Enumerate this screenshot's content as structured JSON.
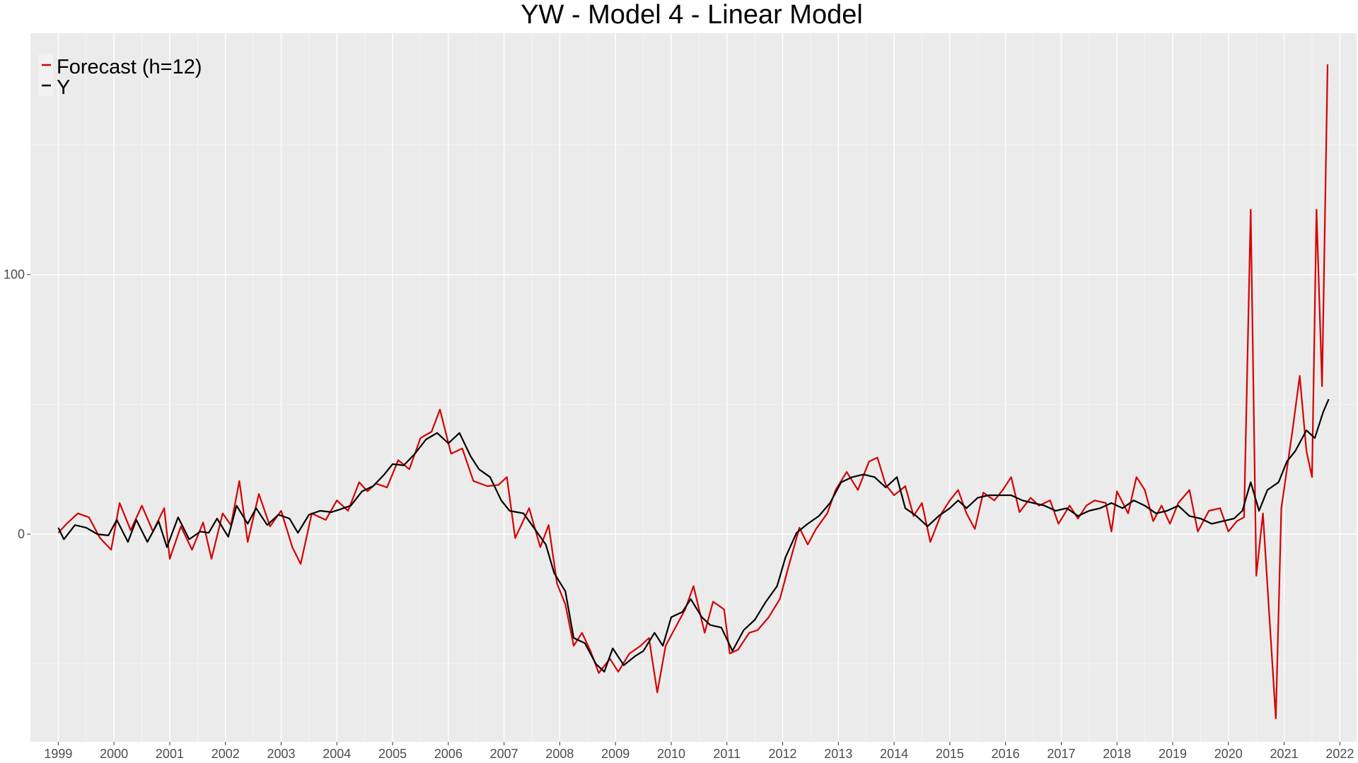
{
  "chart_data": {
    "type": "line",
    "title": "YW - Model 4 - Linear Model",
    "xlabel": "",
    "ylabel": "",
    "xlim": [
      1998.5,
      2022.3
    ],
    "ylim": [
      -80,
      193
    ],
    "x_ticks": [
      "1999",
      "2000",
      "2001",
      "2002",
      "2003",
      "2004",
      "2005",
      "2006",
      "2007",
      "2008",
      "2009",
      "2010",
      "2011",
      "2012",
      "2013",
      "2014",
      "2015",
      "2016",
      "2017",
      "2018",
      "2019",
      "2020",
      "2021",
      "2022"
    ],
    "y_ticks": [
      "0",
      "100"
    ],
    "grid": true,
    "legend_position": "top-left",
    "series": [
      {
        "name": "Forecast (h=12)",
        "color": "#d50000",
        "points": [
          [
            1999.0,
            0.5
          ],
          [
            1999.15,
            4.0
          ],
          [
            1999.35,
            8.0
          ],
          [
            1999.55,
            6.5
          ],
          [
            1999.75,
            -1.5
          ],
          [
            1999.95,
            -6.0
          ],
          [
            2000.1,
            12.0
          ],
          [
            2000.3,
            1.5
          ],
          [
            2000.5,
            11.0
          ],
          [
            2000.7,
            1.0
          ],
          [
            2000.9,
            10.0
          ],
          [
            2001.0,
            -9.5
          ],
          [
            2001.2,
            3.0
          ],
          [
            2001.4,
            -6.0
          ],
          [
            2001.6,
            4.5
          ],
          [
            2001.75,
            -9.5
          ],
          [
            2001.95,
            8.0
          ],
          [
            2002.1,
            3.5
          ],
          [
            2002.25,
            20.5
          ],
          [
            2002.4,
            -3.0
          ],
          [
            2002.6,
            15.5
          ],
          [
            2002.8,
            3.0
          ],
          [
            2003.0,
            9.0
          ],
          [
            2003.2,
            -5.0
          ],
          [
            2003.35,
            -11.5
          ],
          [
            2003.55,
            8.0
          ],
          [
            2003.8,
            5.5
          ],
          [
            2004.0,
            13.0
          ],
          [
            2004.2,
            9.0
          ],
          [
            2004.4,
            20.0
          ],
          [
            2004.55,
            16.5
          ],
          [
            2004.7,
            19.5
          ],
          [
            2004.9,
            18.0
          ],
          [
            2005.1,
            28.5
          ],
          [
            2005.3,
            25.0
          ],
          [
            2005.5,
            37.0
          ],
          [
            2005.7,
            39.5
          ],
          [
            2005.85,
            48.0
          ],
          [
            2006.05,
            31.0
          ],
          [
            2006.25,
            33.0
          ],
          [
            2006.45,
            20.5
          ],
          [
            2006.7,
            18.5
          ],
          [
            2006.9,
            19.0
          ],
          [
            2007.05,
            22.0
          ],
          [
            2007.2,
            -1.5
          ],
          [
            2007.45,
            10.0
          ],
          [
            2007.65,
            -5.0
          ],
          [
            2007.8,
            3.5
          ],
          [
            2007.95,
            -19.0
          ],
          [
            2008.1,
            -27.0
          ],
          [
            2008.25,
            -43.0
          ],
          [
            2008.4,
            -38.0
          ],
          [
            2008.55,
            -45.0
          ],
          [
            2008.7,
            -53.5
          ],
          [
            2008.9,
            -48.0
          ],
          [
            2009.05,
            -53.0
          ],
          [
            2009.25,
            -46.0
          ],
          [
            2009.45,
            -43.0
          ],
          [
            2009.6,
            -40.0
          ],
          [
            2009.75,
            -61.0
          ],
          [
            2009.9,
            -43.0
          ],
          [
            2010.05,
            -37.0
          ],
          [
            2010.25,
            -29.0
          ],
          [
            2010.4,
            -20.0
          ],
          [
            2010.6,
            -38.0
          ],
          [
            2010.75,
            -26.0
          ],
          [
            2010.95,
            -29.0
          ],
          [
            2011.05,
            -46.0
          ],
          [
            2011.2,
            -44.5
          ],
          [
            2011.4,
            -38.0
          ],
          [
            2011.55,
            -37.0
          ],
          [
            2011.75,
            -32.0
          ],
          [
            2011.95,
            -25.0
          ],
          [
            2012.1,
            -13.0
          ],
          [
            2012.3,
            2.5
          ],
          [
            2012.45,
            -4.0
          ],
          [
            2012.6,
            2.0
          ],
          [
            2012.8,
            8.0
          ],
          [
            2012.95,
            17.0
          ],
          [
            2013.15,
            24.0
          ],
          [
            2013.35,
            17.0
          ],
          [
            2013.55,
            28.0
          ],
          [
            2013.7,
            29.5
          ],
          [
            2013.85,
            19.0
          ],
          [
            2014.0,
            15.0
          ],
          [
            2014.2,
            18.5
          ],
          [
            2014.35,
            7.0
          ],
          [
            2014.5,
            12.0
          ],
          [
            2014.65,
            -3.0
          ],
          [
            2014.85,
            8.0
          ],
          [
            2015.0,
            13.0
          ],
          [
            2015.15,
            17.0
          ],
          [
            2015.3,
            8.0
          ],
          [
            2015.45,
            2.0
          ],
          [
            2015.6,
            16.0
          ],
          [
            2015.8,
            13.0
          ],
          [
            2015.95,
            17.0
          ],
          [
            2016.1,
            22.0
          ],
          [
            2016.25,
            8.5
          ],
          [
            2016.45,
            14.0
          ],
          [
            2016.6,
            11.0
          ],
          [
            2016.8,
            13.0
          ],
          [
            2016.95,
            4.0
          ],
          [
            2017.15,
            11.0
          ],
          [
            2017.3,
            6.0
          ],
          [
            2017.45,
            11.0
          ],
          [
            2017.6,
            13.0
          ],
          [
            2017.8,
            12.0
          ],
          [
            2017.9,
            1.0
          ],
          [
            2018.0,
            16.5
          ],
          [
            2018.2,
            8.0
          ],
          [
            2018.35,
            22.0
          ],
          [
            2018.5,
            17.0
          ],
          [
            2018.65,
            5.0
          ],
          [
            2018.8,
            11.0
          ],
          [
            2018.95,
            4.0
          ],
          [
            2019.1,
            12.0
          ],
          [
            2019.3,
            17.0
          ],
          [
            2019.45,
            1.0
          ],
          [
            2019.65,
            9.0
          ],
          [
            2019.85,
            10.0
          ],
          [
            2020.0,
            1.0
          ],
          [
            2020.15,
            5.0
          ],
          [
            2020.28,
            6.5
          ],
          [
            2020.4,
            125.0
          ],
          [
            2020.5,
            -16.0
          ],
          [
            2020.62,
            8.0
          ],
          [
            2020.73,
            -30.0
          ],
          [
            2020.85,
            -71.0
          ],
          [
            2020.95,
            10.0
          ],
          [
            2021.05,
            25.0
          ],
          [
            2021.15,
            40.0
          ],
          [
            2021.28,
            61.0
          ],
          [
            2021.4,
            32.0
          ],
          [
            2021.5,
            22.0
          ],
          [
            2021.58,
            125.0
          ],
          [
            2021.68,
            57.0
          ],
          [
            2021.78,
            181.0
          ]
        ]
      },
      {
        "name": "Y",
        "color": "#000000",
        "points": [
          [
            1999.0,
            2.5
          ],
          [
            1999.1,
            -2.0
          ],
          [
            1999.3,
            3.5
          ],
          [
            1999.5,
            2.5
          ],
          [
            1999.7,
            0.0
          ],
          [
            1999.9,
            -0.5
          ],
          [
            2000.05,
            5.5
          ],
          [
            2000.25,
            -3.0
          ],
          [
            2000.4,
            5.5
          ],
          [
            2000.6,
            -3.0
          ],
          [
            2000.8,
            5.0
          ],
          [
            2000.95,
            -5.0
          ],
          [
            2001.15,
            6.5
          ],
          [
            2001.35,
            -2.0
          ],
          [
            2001.55,
            1.0
          ],
          [
            2001.7,
            0.5
          ],
          [
            2001.85,
            6.0
          ],
          [
            2002.05,
            -1.0
          ],
          [
            2002.2,
            11.0
          ],
          [
            2002.4,
            4.0
          ],
          [
            2002.55,
            10.0
          ],
          [
            2002.75,
            3.5
          ],
          [
            2002.95,
            7.5
          ],
          [
            2003.15,
            6.0
          ],
          [
            2003.3,
            0.5
          ],
          [
            2003.5,
            7.5
          ],
          [
            2003.7,
            9.0
          ],
          [
            2003.9,
            8.5
          ],
          [
            2004.05,
            9.5
          ],
          [
            2004.25,
            11.0
          ],
          [
            2004.45,
            16.5
          ],
          [
            2004.65,
            18.5
          ],
          [
            2004.85,
            23.0
          ],
          [
            2005.0,
            27.0
          ],
          [
            2005.2,
            26.5
          ],
          [
            2005.4,
            31.0
          ],
          [
            2005.6,
            36.5
          ],
          [
            2005.8,
            39.0
          ],
          [
            2006.0,
            35.0
          ],
          [
            2006.2,
            39.0
          ],
          [
            2006.4,
            30.0
          ],
          [
            2006.55,
            25.0
          ],
          [
            2006.75,
            22.0
          ],
          [
            2006.95,
            13.0
          ],
          [
            2007.1,
            9.0
          ],
          [
            2007.35,
            8.0
          ],
          [
            2007.55,
            2.0
          ],
          [
            2007.75,
            -4.0
          ],
          [
            2007.9,
            -15.0
          ],
          [
            2008.1,
            -22.0
          ],
          [
            2008.25,
            -40.0
          ],
          [
            2008.45,
            -42.0
          ],
          [
            2008.65,
            -50.0
          ],
          [
            2008.8,
            -53.0
          ],
          [
            2008.95,
            -44.0
          ],
          [
            2009.15,
            -50.5
          ],
          [
            2009.35,
            -47.0
          ],
          [
            2009.5,
            -45.0
          ],
          [
            2009.7,
            -38.0
          ],
          [
            2009.85,
            -43.0
          ],
          [
            2010.0,
            -32.0
          ],
          [
            2010.2,
            -30.0
          ],
          [
            2010.35,
            -25.0
          ],
          [
            2010.55,
            -32.0
          ],
          [
            2010.7,
            -35.0
          ],
          [
            2010.9,
            -36.0
          ],
          [
            2011.1,
            -45.0
          ],
          [
            2011.3,
            -37.0
          ],
          [
            2011.5,
            -33.0
          ],
          [
            2011.7,
            -26.0
          ],
          [
            2011.9,
            -20.0
          ],
          [
            2012.05,
            -9.0
          ],
          [
            2012.25,
            0.5
          ],
          [
            2012.45,
            4.0
          ],
          [
            2012.65,
            7.0
          ],
          [
            2012.85,
            12.0
          ],
          [
            2013.05,
            20.0
          ],
          [
            2013.25,
            22.0
          ],
          [
            2013.45,
            23.0
          ],
          [
            2013.65,
            22.0
          ],
          [
            2013.85,
            18.0
          ],
          [
            2014.05,
            22.0
          ],
          [
            2014.2,
            10.0
          ],
          [
            2014.4,
            7.0
          ],
          [
            2014.6,
            3.0
          ],
          [
            2014.8,
            7.0
          ],
          [
            2015.0,
            10.0
          ],
          [
            2015.15,
            13.0
          ],
          [
            2015.3,
            10.0
          ],
          [
            2015.5,
            14.0
          ],
          [
            2015.7,
            15.0
          ],
          [
            2015.9,
            15.0
          ],
          [
            2016.1,
            15.0
          ],
          [
            2016.3,
            13.0
          ],
          [
            2016.5,
            12.0
          ],
          [
            2016.7,
            11.0
          ],
          [
            2016.9,
            9.0
          ],
          [
            2017.1,
            10.0
          ],
          [
            2017.3,
            7.0
          ],
          [
            2017.5,
            9.0
          ],
          [
            2017.7,
            10.0
          ],
          [
            2017.9,
            12.0
          ],
          [
            2018.1,
            10.0
          ],
          [
            2018.3,
            13.0
          ],
          [
            2018.5,
            11.0
          ],
          [
            2018.7,
            8.0
          ],
          [
            2018.9,
            9.0
          ],
          [
            2019.1,
            11.0
          ],
          [
            2019.3,
            7.0
          ],
          [
            2019.5,
            6.0
          ],
          [
            2019.7,
            4.0
          ],
          [
            2019.9,
            5.0
          ],
          [
            2020.1,
            6.0
          ],
          [
            2020.25,
            9.0
          ],
          [
            2020.4,
            20.0
          ],
          [
            2020.55,
            9.0
          ],
          [
            2020.7,
            17.0
          ],
          [
            2020.9,
            20.0
          ],
          [
            2021.05,
            28.0
          ],
          [
            2021.2,
            32.0
          ],
          [
            2021.4,
            40.0
          ],
          [
            2021.55,
            37.0
          ],
          [
            2021.7,
            47.0
          ],
          [
            2021.8,
            52.0
          ]
        ]
      }
    ]
  }
}
